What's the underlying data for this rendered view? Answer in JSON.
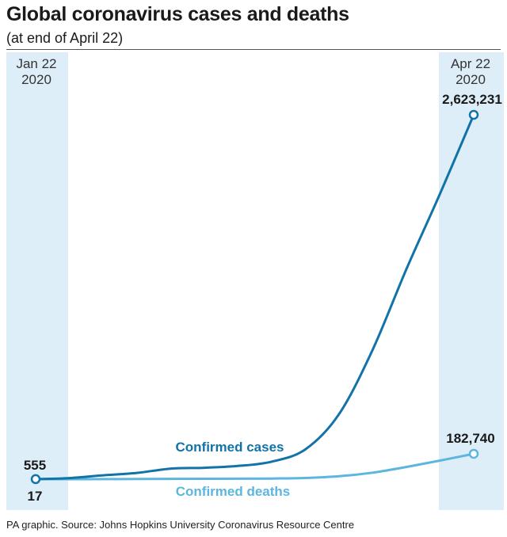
{
  "title": "Global coronavirus cases and deaths",
  "subtitle": "(at end of April 22)",
  "source": "PA graphic. Source: Johns Hopkins University Coronavirus Resource Centre",
  "colors": {
    "cases": "#1273a8",
    "deaths": "#5cb6de",
    "band": "#deeef8"
  },
  "chart_data": {
    "type": "line",
    "x_start_label": [
      "Jan 22",
      "2020"
    ],
    "x_end_label": [
      "Apr 22",
      "2020"
    ],
    "x": [
      "2020-01-22",
      "2020-01-29",
      "2020-02-05",
      "2020-02-12",
      "2020-02-19",
      "2020-02-26",
      "2020-03-04",
      "2020-03-11",
      "2020-03-18",
      "2020-03-25",
      "2020-04-01",
      "2020-04-08",
      "2020-04-15",
      "2020-04-22"
    ],
    "series": [
      {
        "name": "Confirmed cases",
        "values": [
          555,
          7800,
          28000,
          45000,
          76000,
          82000,
          95000,
          126000,
          214000,
          467000,
          932000,
          1511000,
          2056000,
          2623231
        ]
      },
      {
        "name": "Confirmed deaths",
        "values": [
          17,
          170,
          560,
          1100,
          2100,
          2800,
          3300,
          4600,
          8800,
          21000,
          47000,
          88000,
          134000,
          182740
        ]
      }
    ],
    "annotations": {
      "cases_start": "555",
      "deaths_start": "17",
      "cases_end": "2,623,231",
      "deaths_end": "182,740"
    }
  }
}
